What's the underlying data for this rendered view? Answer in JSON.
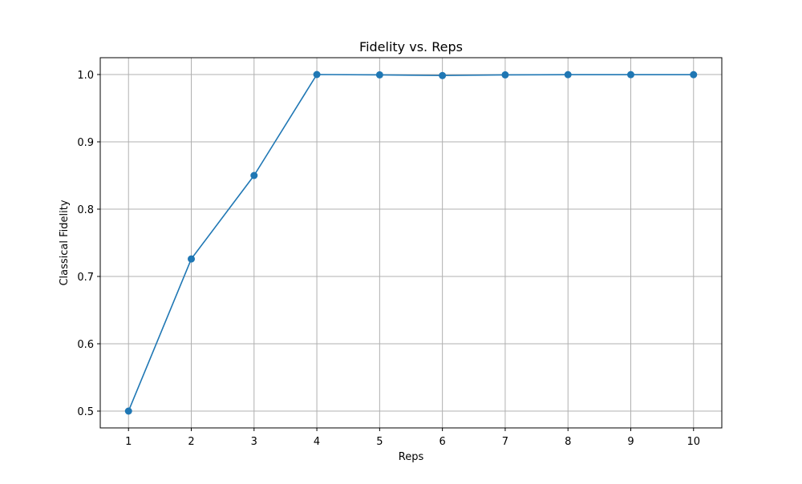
{
  "chart_data": {
    "type": "line",
    "title": "Fidelity vs. Reps",
    "xlabel": "Reps",
    "ylabel": "Classical Fidelity",
    "x": [
      1,
      2,
      3,
      4,
      5,
      6,
      7,
      8,
      9,
      10
    ],
    "series": [
      {
        "values": [
          0.5,
          0.726,
          0.85,
          1.0,
          0.9995,
          0.9985,
          0.9995,
          0.9998,
          0.9998,
          0.9998
        ],
        "color": "#1f77b4",
        "marker": "circle"
      }
    ],
    "xlim": [
      0.55,
      10.45
    ],
    "ylim": [
      0.475,
      1.025
    ],
    "xticks": [
      "1",
      "2",
      "3",
      "4",
      "5",
      "6",
      "7",
      "8",
      "9",
      "10"
    ],
    "yticks": [
      "0.5",
      "0.6",
      "0.7",
      "0.8",
      "0.9",
      "1.0"
    ],
    "grid": true,
    "grid_color": "#b0b0b0",
    "axis_color": "#000000"
  }
}
